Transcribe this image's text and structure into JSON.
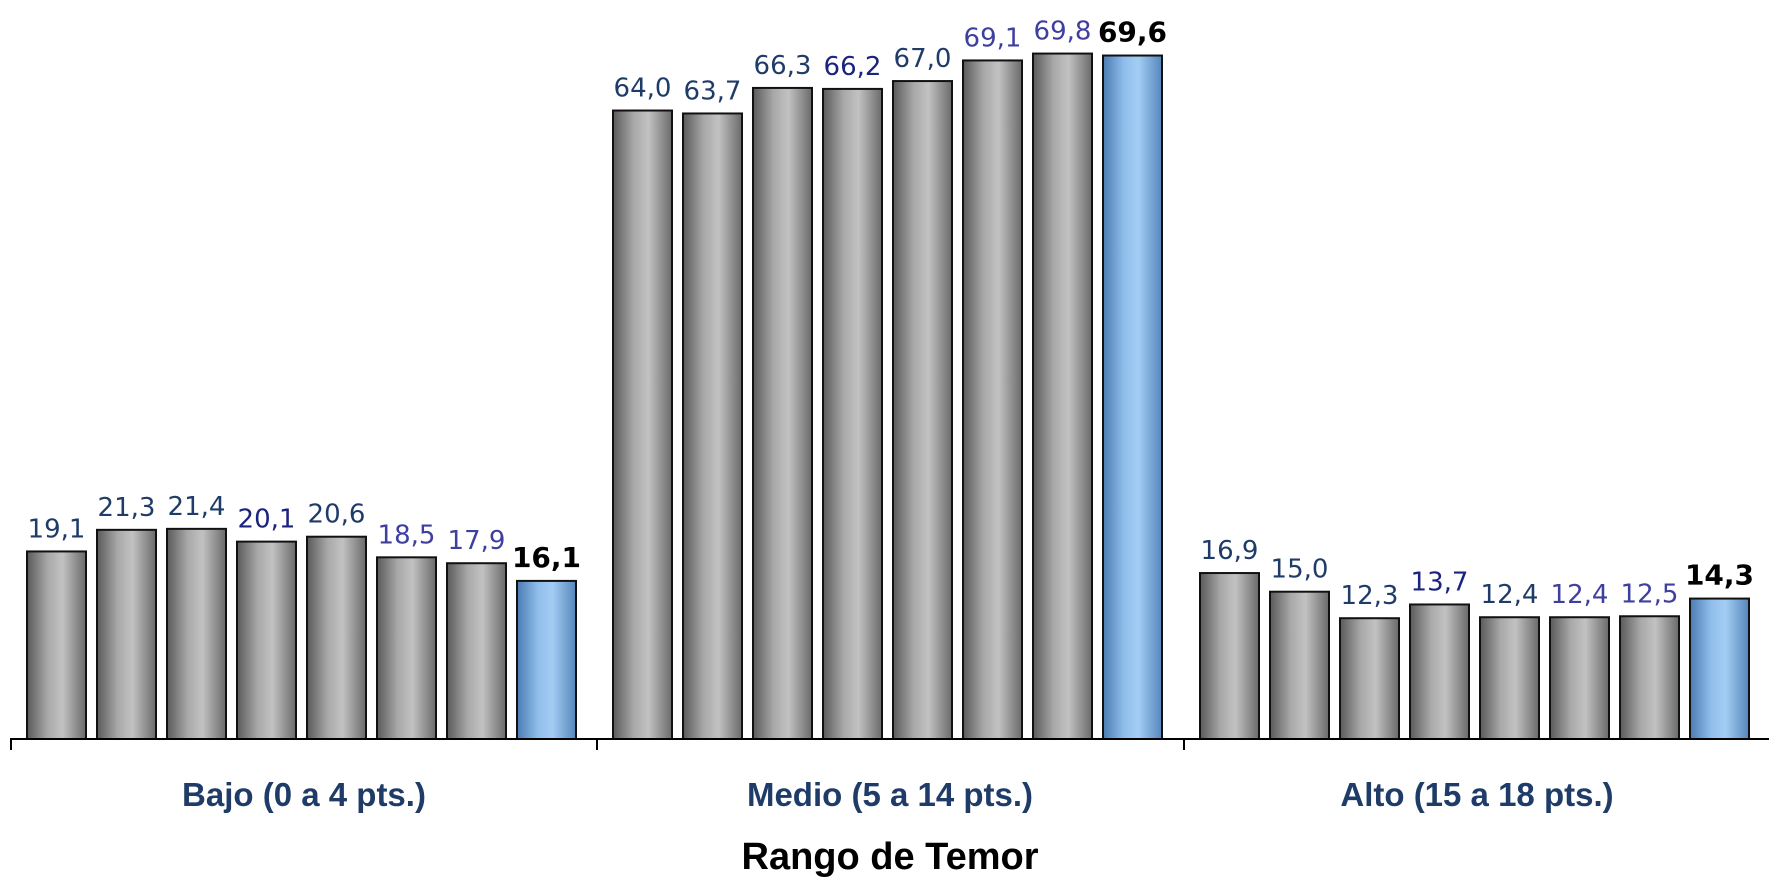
{
  "chart_data": {
    "type": "bar",
    "xlabel": "Rango de Temor",
    "ylabel": "",
    "ylim": [
      0,
      75
    ],
    "grid": false,
    "legend": "none",
    "categories": [
      "Bajo (0 a 4 pts.)",
      "Medio (5 a 14 pts.)",
      "Alto (15 a 18 pts.)"
    ],
    "series_count": 8,
    "values": [
      [
        19.1,
        21.3,
        21.4,
        20.1,
        20.6,
        18.5,
        17.9,
        16.1
      ],
      [
        64.0,
        63.7,
        66.3,
        66.2,
        67.0,
        69.1,
        69.8,
        69.6
      ],
      [
        16.9,
        15.0,
        12.3,
        13.7,
        12.4,
        12.4,
        12.5,
        14.3
      ]
    ],
    "value_labels": [
      [
        "19,1",
        "21,3",
        "21,4",
        "20,1",
        "20,6",
        "18,5",
        "17,9",
        "16,1"
      ],
      [
        "64,0",
        "63,7",
        "66,3",
        "66,2",
        "67,0",
        "69,1",
        "69,8",
        "69,6"
      ],
      [
        "16,9",
        "15,0",
        "12,3",
        "13,7",
        "12,4",
        "12,4",
        "12,5",
        "14,3"
      ]
    ],
    "label_colors": [
      "#1f3c68",
      "#1f3c68",
      "#1f3c68",
      "#1a237e",
      "#1f3c68",
      "#3f3fa0",
      "#3f3fa0",
      "#000000"
    ],
    "colors": {
      "gray_bar_edge": "#5e5e5e",
      "gray_bar_mid": "#bdbdbd",
      "highlight_bar_edge": "#4f7fb5",
      "highlight_bar_mid": "#9ec9f2",
      "bar_outline": "#111111",
      "axis": "#000000"
    }
  }
}
